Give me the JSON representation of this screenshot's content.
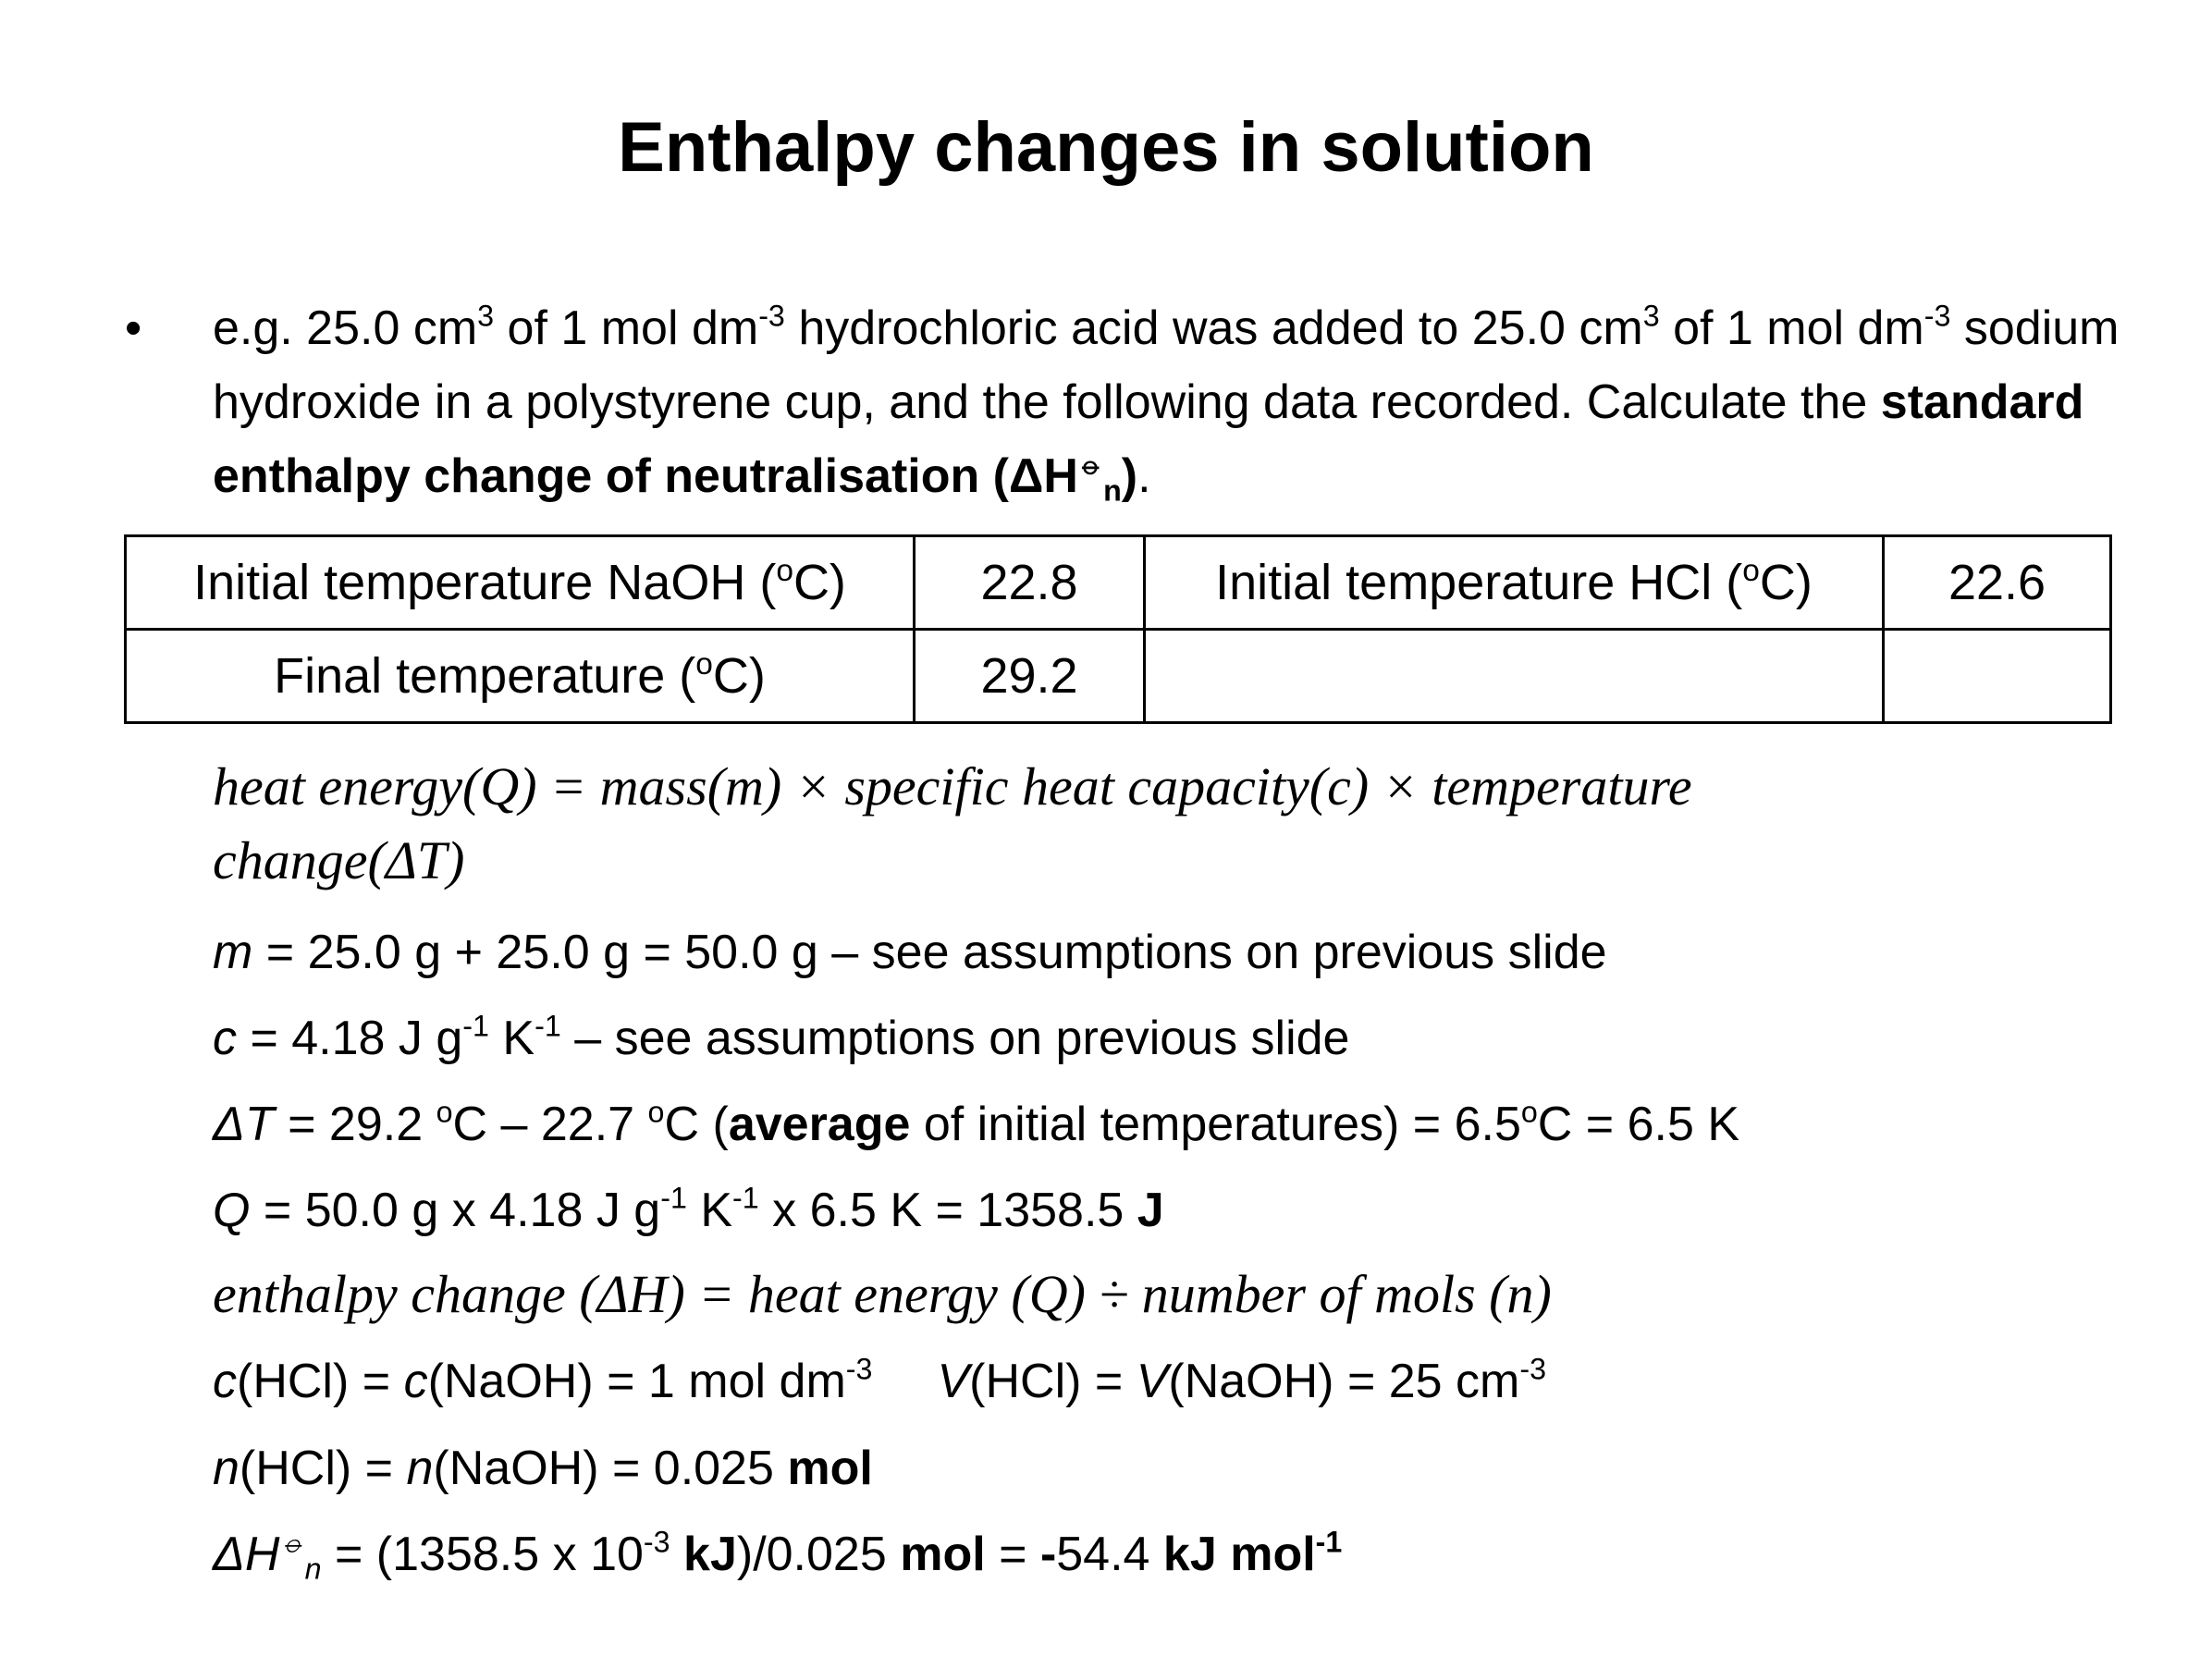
{
  "title": "Enthalpy changes in solution",
  "bullet": [
    "e.g. 25.0 cm",
    "3",
    " of 1 mol dm",
    "-3",
    " hydrochloric acid was added to 25.0 cm",
    "3",
    " of 1 mol dm",
    "-3",
    " sodium hydroxide in a polystyrene cup, and the following data recorded. Calculate the ",
    "standard enthalpy change of neutralisation (ΔH",
    "⦵",
    "n",
    ")",
    "."
  ],
  "table": {
    "rows": [
      [
        [
          "Initial temperature NaOH (",
          "o",
          "C)"
        ],
        "22.8",
        [
          "Initial temperature HCl (",
          "o",
          "C)"
        ],
        "22.6"
      ],
      [
        [
          "Final temperature (",
          "o",
          "C)"
        ],
        "29.2"
      ]
    ]
  },
  "lines": [
    [
      "heat energy(Q) = mass(m) × specific heat capacity(c) × temperature change(ΔT)"
    ],
    [
      "m",
      " = 25.0 g + 25.0 g = 50.0 g – see assumptions on previous slide"
    ],
    [
      "c",
      " = 4.18 J g",
      "-1",
      " K",
      "-1",
      " – see assumptions on previous slide"
    ],
    [
      "ΔT",
      " = 29.2 ",
      "o",
      "C – 22.7 ",
      "o",
      "C (",
      "average",
      " of initial temperatures) = 6.5",
      "o",
      "C = 6.5 K"
    ],
    [
      "Q",
      " = 50.0 g x 4.18 J g",
      "-1",
      " K",
      "-1",
      " x 6.5 K = 1358.5 ",
      "J"
    ],
    [
      "enthalpy change (ΔH) = heat energy (Q) ÷ number of mols (n)"
    ],
    [
      "c",
      "(HCl) = ",
      "c",
      "(NaOH) = 1 mol dm",
      "-3",
      "V",
      "(HCl) = ",
      "V",
      "(NaOH) = 25 cm",
      "-3"
    ],
    [
      "n",
      "(HCl) = ",
      "n",
      "(NaOH) = 0.025 ",
      "mol"
    ],
    [
      "ΔH",
      "⦵",
      "n",
      " = (1358.5 x 10",
      "-3",
      " kJ",
      ")/0.025 ",
      "mol",
      " = ",
      "-",
      "54.4 ",
      "kJ mol",
      "-1"
    ]
  ]
}
